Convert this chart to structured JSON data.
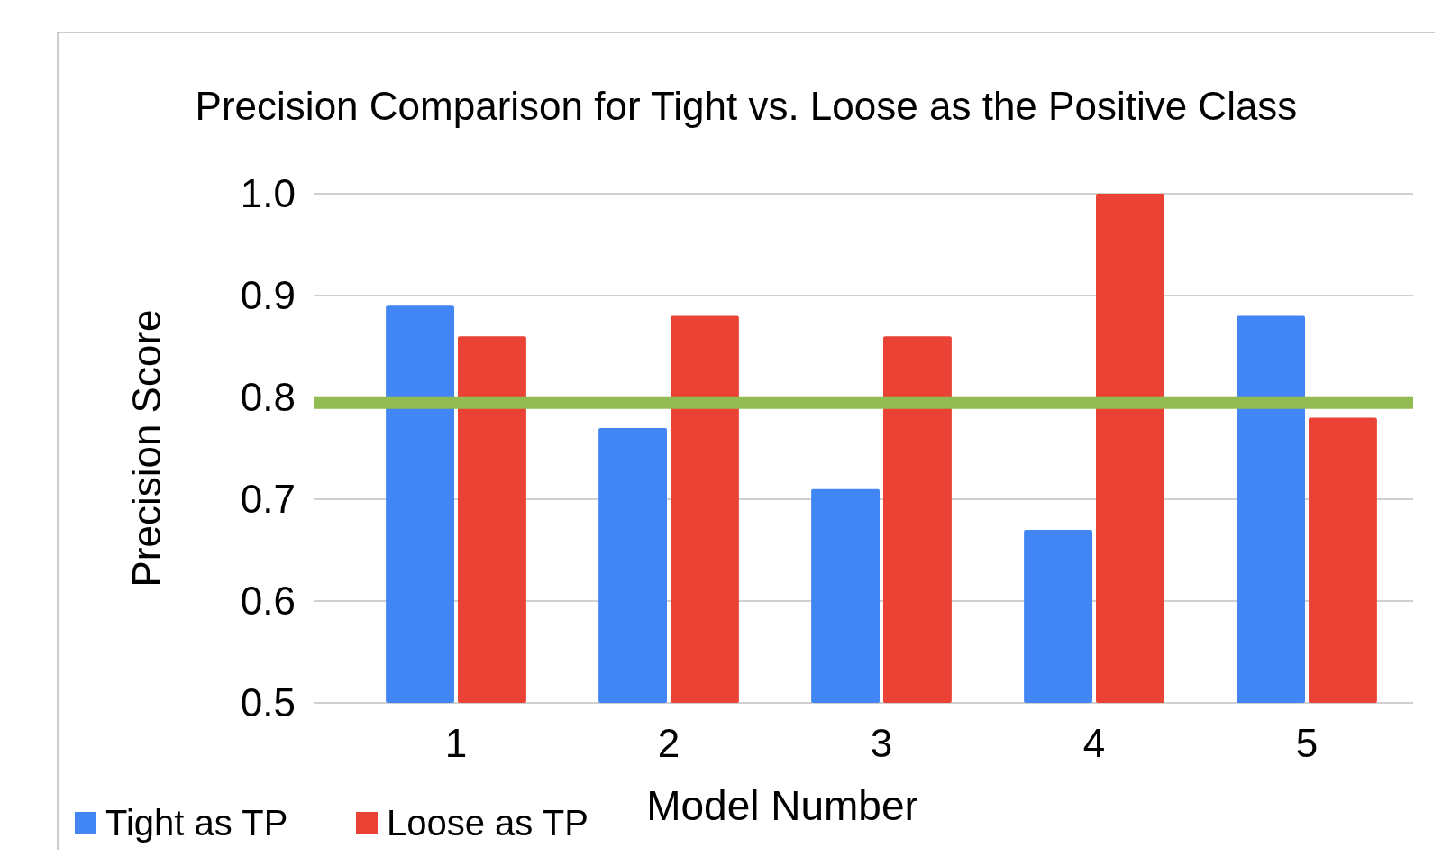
{
  "chart_data": {
    "type": "bar",
    "title": "Precision Comparison for Tight vs. Loose as the Positive Class",
    "xlabel": "Model Number",
    "ylabel": "Precision Score",
    "categories": [
      "1",
      "2",
      "3",
      "4",
      "5"
    ],
    "series": [
      {
        "name": "Tight as TP",
        "color": "#4285f4",
        "values": [
          0.89,
          0.77,
          0.71,
          0.67,
          0.88
        ]
      },
      {
        "name": "Loose as TP",
        "color": "#ea4335",
        "values": [
          0.86,
          0.88,
          0.86,
          1.0,
          0.78
        ]
      }
    ],
    "ylim": [
      0.5,
      1.0
    ],
    "yticks": [
      {
        "value": 0.5,
        "label": "0.5"
      },
      {
        "value": 0.6,
        "label": "0.6"
      },
      {
        "value": 0.7,
        "label": "0.7"
      },
      {
        "value": 0.8,
        "label": "0.8"
      },
      {
        "value": 0.9,
        "label": "0.9"
      },
      {
        "value": 1.0,
        "label": "1.0"
      }
    ],
    "grid": "y",
    "legend": "bottom left",
    "ref_lines": [
      {
        "axis": "y",
        "value": 0.795,
        "color": "#93bb54"
      }
    ]
  }
}
